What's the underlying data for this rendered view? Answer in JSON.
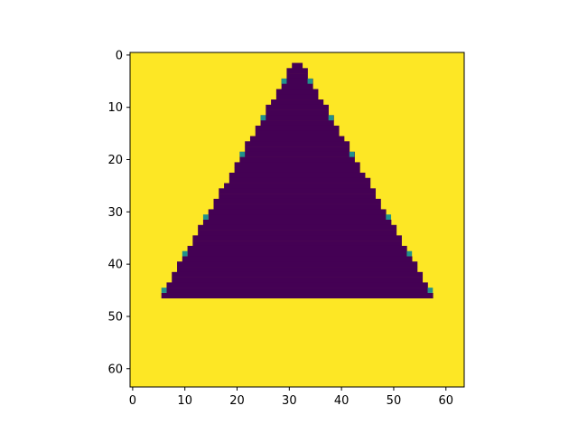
{
  "chart_data": {
    "type": "heatmap",
    "title": "",
    "xlabel": "",
    "ylabel": "",
    "grid_size": [
      64,
      64
    ],
    "colormap": "viridis",
    "colors": {
      "background_value": "#fde725",
      "shape_value": "#440154",
      "edge_value": "#21918c"
    },
    "shape": "filled triangle",
    "apex_row": 2,
    "apex_cols": [
      31,
      32
    ],
    "base_row": 46,
    "base_cols": [
      6,
      57
    ],
    "edge_cells": [
      [
        5,
        29
      ],
      [
        5,
        34
      ],
      [
        12,
        25
      ],
      [
        12,
        38
      ],
      [
        19,
        21
      ],
      [
        19,
        42
      ],
      [
        31,
        14
      ],
      [
        31,
        49
      ],
      [
        38,
        10
      ],
      [
        38,
        53
      ],
      [
        45,
        6
      ],
      [
        45,
        57
      ]
    ],
    "xlim": [
      -0.5,
      63.5
    ],
    "ylim": [
      63.5,
      -0.5
    ],
    "x_ticks": [
      "0",
      "10",
      "20",
      "30",
      "40",
      "50",
      "60"
    ],
    "y_ticks": [
      "0",
      "10",
      "20",
      "30",
      "40",
      "50",
      "60"
    ],
    "grid": false,
    "legend": "none"
  }
}
